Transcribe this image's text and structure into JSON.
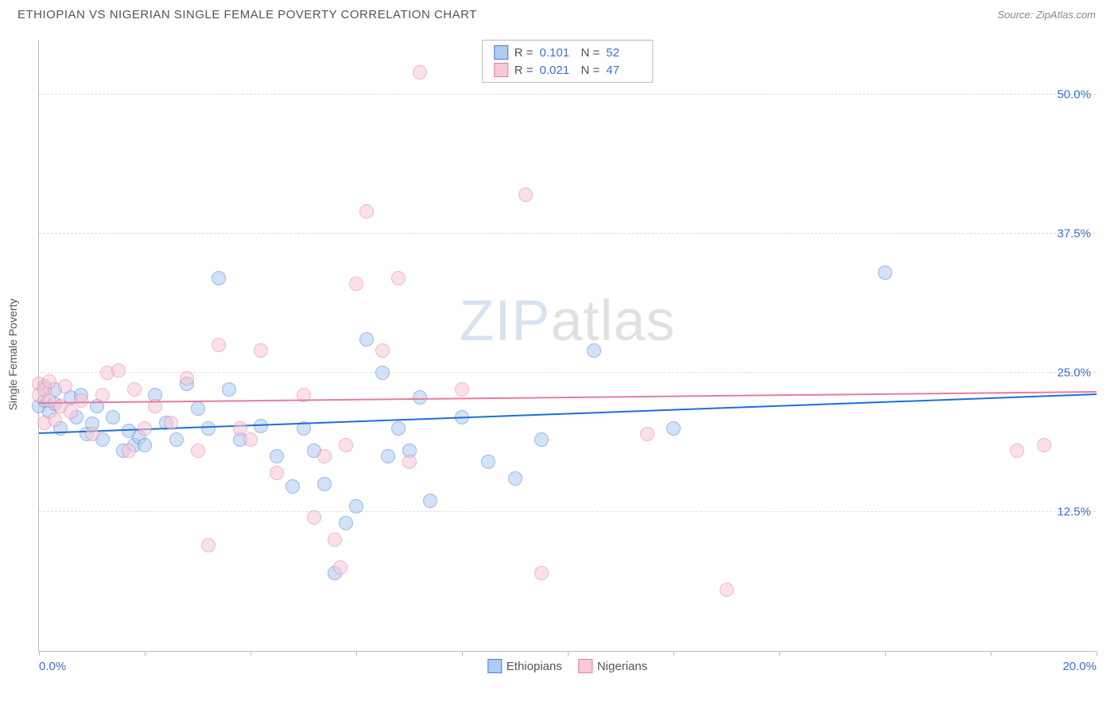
{
  "header": {
    "title": "ETHIOPIAN VS NIGERIAN SINGLE FEMALE POVERTY CORRELATION CHART",
    "source": "Source: ZipAtlas.com"
  },
  "chart": {
    "type": "scatter",
    "ylabel": "Single Female Poverty",
    "xlim": [
      0,
      20
    ],
    "ylim": [
      0,
      55
    ],
    "xticks": [
      0,
      2,
      4,
      6,
      8,
      10,
      12,
      14,
      16,
      18,
      20
    ],
    "xtick_labels": {
      "0": "0.0%",
      "20": "20.0%"
    },
    "yticks": [
      12.5,
      25.0,
      37.5,
      50.0
    ],
    "ytick_labels": [
      "12.5%",
      "25.0%",
      "37.5%",
      "50.0%"
    ],
    "background_color": "#ffffff",
    "grid_color": "#dddddd",
    "axis_color": "#bbbbbb",
    "marker_radius": 9,
    "marker_opacity": 0.55,
    "series": [
      {
        "name": "Ethiopians",
        "fill_color": "#aeccf2",
        "stroke_color": "#4a7fd6",
        "trend_color": "#1d6fd8",
        "R": "0.101",
        "N": "52",
        "trend": {
          "y_at_x0": 19.5,
          "y_at_xmax": 23.0
        },
        "points": [
          [
            0.0,
            22.0
          ],
          [
            0.1,
            23.8
          ],
          [
            0.1,
            22.5
          ],
          [
            0.2,
            21.5
          ],
          [
            0.3,
            22.2
          ],
          [
            0.3,
            23.5
          ],
          [
            0.4,
            20.0
          ],
          [
            0.6,
            22.8
          ],
          [
            0.7,
            21.0
          ],
          [
            0.8,
            23.0
          ],
          [
            0.9,
            19.5
          ],
          [
            1.0,
            20.4
          ],
          [
            1.1,
            22.0
          ],
          [
            1.2,
            19.0
          ],
          [
            1.4,
            21.0
          ],
          [
            1.6,
            18.0
          ],
          [
            1.7,
            19.8
          ],
          [
            1.8,
            18.5
          ],
          [
            1.9,
            19.2
          ],
          [
            2.0,
            18.5
          ],
          [
            2.2,
            23.0
          ],
          [
            2.4,
            20.5
          ],
          [
            2.6,
            19.0
          ],
          [
            2.8,
            24.0
          ],
          [
            3.0,
            21.8
          ],
          [
            3.2,
            20.0
          ],
          [
            3.4,
            33.5
          ],
          [
            3.6,
            23.5
          ],
          [
            3.8,
            19.0
          ],
          [
            4.2,
            20.2
          ],
          [
            4.5,
            17.5
          ],
          [
            4.8,
            14.8
          ],
          [
            5.0,
            20.0
          ],
          [
            5.2,
            18.0
          ],
          [
            5.4,
            15.0
          ],
          [
            5.6,
            7.0
          ],
          [
            5.8,
            11.5
          ],
          [
            6.0,
            13.0
          ],
          [
            6.2,
            28.0
          ],
          [
            6.5,
            25.0
          ],
          [
            6.6,
            17.5
          ],
          [
            6.8,
            20.0
          ],
          [
            7.0,
            18.0
          ],
          [
            7.2,
            22.8
          ],
          [
            7.4,
            13.5
          ],
          [
            8.0,
            21.0
          ],
          [
            8.5,
            17.0
          ],
          [
            9.0,
            15.5
          ],
          [
            9.5,
            19.0
          ],
          [
            10.5,
            27.0
          ],
          [
            12.0,
            20.0
          ],
          [
            16.0,
            34.0
          ]
        ]
      },
      {
        "name": "Nigerians",
        "fill_color": "#f6c9d6",
        "stroke_color": "#e77ba3",
        "trend_color": "#e77ba3",
        "R": "0.021",
        "N": "47",
        "trend": {
          "y_at_x0": 22.2,
          "y_at_xmax": 23.2
        },
        "points": [
          [
            0.0,
            24.0
          ],
          [
            0.0,
            23.0
          ],
          [
            0.1,
            23.5
          ],
          [
            0.1,
            20.5
          ],
          [
            0.2,
            22.5
          ],
          [
            0.2,
            24.2
          ],
          [
            0.3,
            20.8
          ],
          [
            0.4,
            22.0
          ],
          [
            0.5,
            23.8
          ],
          [
            0.6,
            21.5
          ],
          [
            0.8,
            22.5
          ],
          [
            1.0,
            19.5
          ],
          [
            1.2,
            23.0
          ],
          [
            1.3,
            25.0
          ],
          [
            1.5,
            25.2
          ],
          [
            1.7,
            18.0
          ],
          [
            1.8,
            23.5
          ],
          [
            2.0,
            20.0
          ],
          [
            2.2,
            22.0
          ],
          [
            2.5,
            20.5
          ],
          [
            2.8,
            24.5
          ],
          [
            3.0,
            18.0
          ],
          [
            3.2,
            9.5
          ],
          [
            3.4,
            27.5
          ],
          [
            3.8,
            20.0
          ],
          [
            4.0,
            19.0
          ],
          [
            4.2,
            27.0
          ],
          [
            4.5,
            16.0
          ],
          [
            5.0,
            23.0
          ],
          [
            5.2,
            12.0
          ],
          [
            5.4,
            17.5
          ],
          [
            5.6,
            10.0
          ],
          [
            5.7,
            7.5
          ],
          [
            5.8,
            18.5
          ],
          [
            6.0,
            33.0
          ],
          [
            6.2,
            39.5
          ],
          [
            6.5,
            27.0
          ],
          [
            6.8,
            33.5
          ],
          [
            7.0,
            17.0
          ],
          [
            7.2,
            52.0
          ],
          [
            8.0,
            23.5
          ],
          [
            9.2,
            41.0
          ],
          [
            9.5,
            7.0
          ],
          [
            11.5,
            19.5
          ],
          [
            13.0,
            5.5
          ],
          [
            18.5,
            18.0
          ],
          [
            19.0,
            18.5
          ]
        ]
      }
    ],
    "legend": {
      "stats_label_R": "R =",
      "stats_label_N": "N ="
    },
    "watermark": {
      "part1": "ZIP",
      "part2": "atlas"
    }
  }
}
